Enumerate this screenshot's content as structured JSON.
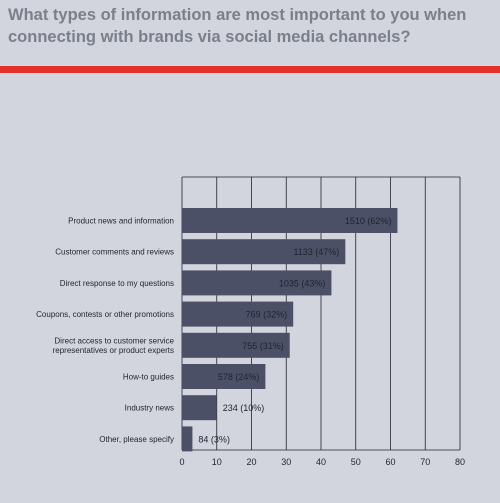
{
  "title": "What types of information are most important to you when connecting with brands via social media channels?",
  "colors": {
    "background": "#d2d5de",
    "accent_rule": "#e2302c",
    "bar": "#4b5066",
    "title": "#7a7f8c"
  },
  "chart_data": {
    "type": "bar",
    "orientation": "horizontal",
    "categories": [
      [
        "Product news and information"
      ],
      [
        "Customer comments and reviews"
      ],
      [
        "Direct response to my questions"
      ],
      [
        "Coupons, contests or other promotions"
      ],
      [
        "Direct access to customer service",
        "representatives or product experts"
      ],
      [
        "How-to guides"
      ],
      [
        "Industry news"
      ],
      [
        "Other, please specify"
      ]
    ],
    "values": [
      62,
      47,
      43,
      32,
      31,
      24,
      10,
      3
    ],
    "data_labels": [
      "1510  (62%)",
      "1133  (47%)",
      "1035  (43%)",
      "769  (32%)",
      "755  (31%)",
      "578  (24%)",
      "234  (10%)",
      "84  (3%)"
    ],
    "xlim": [
      0,
      80
    ],
    "xticks": [
      "0",
      "10",
      "20",
      "30",
      "40",
      "50",
      "60",
      "70",
      "80"
    ],
    "grid": true
  }
}
